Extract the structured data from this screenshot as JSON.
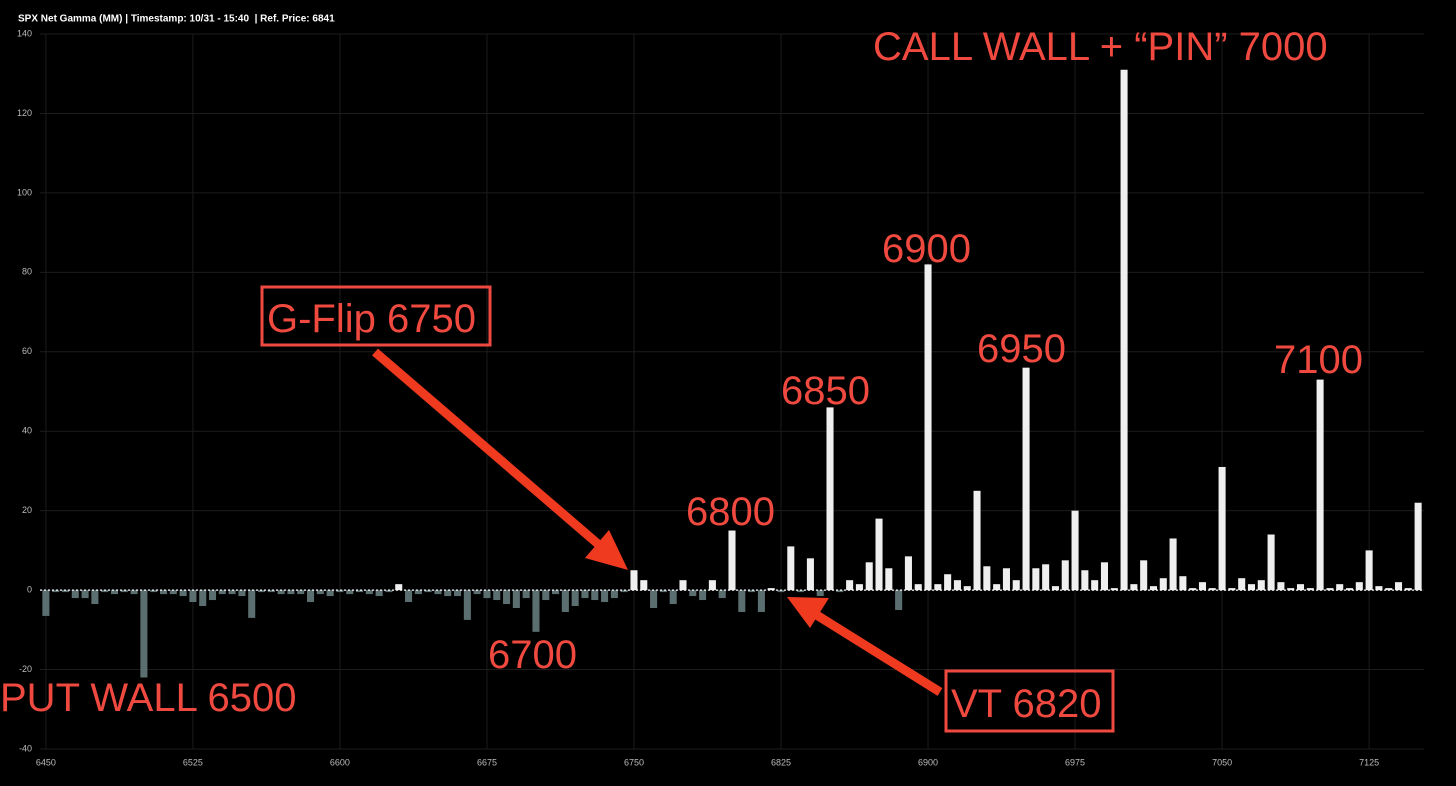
{
  "chart_data": {
    "type": "bar",
    "title": "SPX Net Gamma (MM) | Timestamp: 10/31 - 15:40  | Ref. Price: 6841",
    "x": [
      6450,
      6455,
      6460,
      6465,
      6470,
      6475,
      6480,
      6485,
      6490,
      6495,
      6500,
      6505,
      6510,
      6515,
      6520,
      6525,
      6530,
      6535,
      6540,
      6545,
      6550,
      6555,
      6560,
      6565,
      6570,
      6575,
      6580,
      6585,
      6590,
      6595,
      6600,
      6605,
      6610,
      6615,
      6620,
      6625,
      6630,
      6635,
      6640,
      6645,
      6650,
      6655,
      6660,
      6665,
      6670,
      6675,
      6680,
      6685,
      6690,
      6695,
      6700,
      6705,
      6710,
      6715,
      6720,
      6725,
      6730,
      6735,
      6740,
      6745,
      6750,
      6755,
      6760,
      6765,
      6770,
      6775,
      6780,
      6785,
      6790,
      6795,
      6800,
      6805,
      6810,
      6815,
      6820,
      6825,
      6830,
      6835,
      6840,
      6845,
      6850,
      6855,
      6860,
      6865,
      6870,
      6875,
      6880,
      6885,
      6890,
      6895,
      6900,
      6905,
      6910,
      6915,
      6920,
      6925,
      6930,
      6935,
      6940,
      6945,
      6950,
      6955,
      6960,
      6965,
      6970,
      6975,
      6980,
      6985,
      6990,
      6995,
      7000,
      7005,
      7010,
      7015,
      7020,
      7025,
      7030,
      7035,
      7040,
      7045,
      7050,
      7055,
      7060,
      7065,
      7070,
      7075,
      7080,
      7085,
      7090,
      7095,
      7100,
      7105,
      7110,
      7115,
      7120,
      7125,
      7130,
      7135,
      7140,
      7145,
      7150
    ],
    "values": [
      -6.5,
      -0.5,
      -0.5,
      -2,
      -2,
      -3.5,
      -0.5,
      -1,
      -0.5,
      -1,
      -22,
      -0.5,
      -1,
      -1,
      -1.5,
      -3,
      -4,
      -2.5,
      -1,
      -1,
      -1.5,
      -7,
      -0.5,
      -0.5,
      -1,
      -1,
      -1,
      -3,
      -1,
      -1.5,
      -0.5,
      -1,
      -0.5,
      -1,
      -1.5,
      -0.5,
      1.5,
      -3,
      -1,
      -0.5,
      -1,
      -1.5,
      -1.5,
      -7.5,
      -1,
      -2,
      -2.5,
      -3.5,
      -4.5,
      -2,
      -10.5,
      -2.5,
      -1,
      -5.5,
      -4,
      -2,
      -2.5,
      -3,
      -2,
      -0.5,
      5,
      2.5,
      -4.5,
      -0.5,
      -3.5,
      2.5,
      -1.5,
      -2.5,
      2.5,
      -2,
      15,
      -5.5,
      -0.5,
      -5.5,
      0.5,
      -0.5,
      11,
      -0.5,
      8,
      -1.5,
      46,
      -0.5,
      2.5,
      1.5,
      7,
      18,
      5.5,
      -5,
      8.5,
      1.5,
      82,
      1.5,
      4,
      2.5,
      1,
      25,
      6,
      1.5,
      5.5,
      2.5,
      56,
      5.5,
      6.5,
      1,
      7.5,
      20,
      5,
      2.5,
      7,
      0.5,
      131,
      1.5,
      7.5,
      1,
      3,
      13,
      3.5,
      0.5,
      2,
      0.5,
      31,
      0.5,
      3,
      1.5,
      2.5,
      14,
      2,
      0.5,
      1.5,
      0.5,
      53,
      0.5,
      1.5,
      0.5,
      2,
      10,
      1,
      0.5,
      2,
      0.5,
      22
    ],
    "positive_color": "#efefef",
    "negative_color": "#5b6e70",
    "xlim": [
      6447,
      7153
    ],
    "ylim": [
      -40,
      140
    ],
    "xticks": [
      6450,
      6525,
      6600,
      6675,
      6750,
      6825,
      6900,
      6975,
      7050,
      7125
    ],
    "yticks": [
      -40,
      -20,
      0,
      20,
      40,
      60,
      80,
      100,
      120,
      140
    ],
    "grid": true,
    "annotations": [
      "CALL WALL + “PIN” 7000",
      "6900",
      "6950",
      "7100",
      "6850",
      "6800",
      "G-Flip 6750",
      "6700",
      "PUT WALL 6500",
      "VT 6820"
    ]
  }
}
